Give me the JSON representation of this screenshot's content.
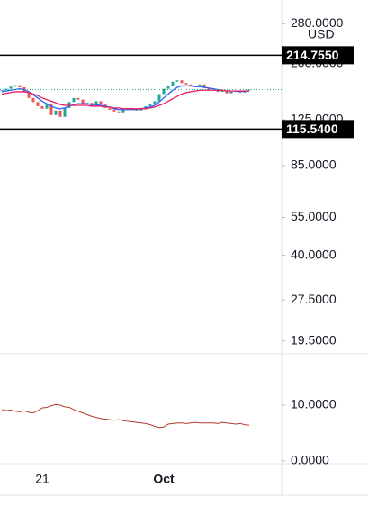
{
  "chart_data": [
    {
      "type": "candle",
      "currency": "USD",
      "log_scale": true,
      "ylim": [
        17.5,
        341.5
      ],
      "yticks": [
        {
          "value": 280,
          "label": "280.0000"
        },
        {
          "value": 200,
          "label": "200.0000"
        },
        {
          "value": 125,
          "label": "125.0000"
        },
        {
          "value": 85,
          "label": "85.0000"
        },
        {
          "value": 55,
          "label": "55.0000"
        },
        {
          "value": 40,
          "label": "40.0000"
        },
        {
          "value": 27.5,
          "label": "27.5000"
        },
        {
          "value": 19.5,
          "label": "19.5000"
        }
      ],
      "levels": [
        {
          "value": 214.755,
          "label": "214.7550"
        },
        {
          "value": 115.54,
          "label": "115.5400"
        }
      ],
      "categories": [
        null,
        null,
        null,
        null,
        null,
        null,
        null,
        null,
        null,
        "21",
        null,
        null,
        null,
        null,
        null,
        null,
        null,
        null,
        null,
        null,
        null,
        null,
        null,
        null,
        null,
        null,
        null,
        null,
        null,
        null,
        null,
        null,
        null,
        null,
        null,
        null,
        "Oct",
        null,
        null,
        null,
        null,
        null,
        null,
        null,
        null,
        null,
        null,
        null,
        null,
        null,
        null,
        null,
        null,
        null,
        null,
        null
      ],
      "up_color": "#26a69a",
      "down_color": "#ef5350",
      "last_price_color": "#26a69a",
      "values": [
        160,
        162,
        165,
        167,
        164,
        158,
        150,
        145,
        140,
        137,
        142,
        130,
        135,
        128,
        138,
        145,
        150,
        148,
        142,
        144,
        140,
        146,
        142,
        138,
        136,
        134,
        133,
        136,
        138,
        137,
        135,
        138,
        140,
        142,
        146,
        155,
        162,
        166,
        172,
        174,
        170,
        168,
        166,
        164,
        168,
        163,
        160,
        161,
        158,
        160,
        156,
        158,
        159,
        157,
        160,
        161
      ],
      "series": [
        {
          "color": "#2962ff",
          "values": [
            158,
            159,
            160,
            161,
            162,
            161,
            158,
            154,
            150,
            146,
            143,
            140,
            138,
            137,
            138,
            140,
            142,
            143,
            143,
            143,
            142,
            142,
            141,
            140,
            139,
            137,
            136,
            136,
            136,
            136,
            136,
            137,
            138,
            139,
            141,
            145,
            150,
            155,
            160,
            164,
            166,
            166,
            166,
            165,
            165,
            164,
            163,
            162,
            161,
            160,
            159,
            159,
            159,
            158,
            159,
            159
          ]
        },
        {
          "color": "#e91e63",
          "values": [
            155,
            156,
            157,
            158,
            158,
            158,
            157,
            155,
            153,
            150,
            148,
            146,
            144,
            142,
            141,
            141,
            141,
            141,
            141,
            141,
            140,
            140,
            140,
            139,
            139,
            138,
            138,
            137,
            137,
            137,
            137,
            137,
            137,
            138,
            139,
            141,
            143,
            146,
            149,
            152,
            155,
            157,
            158,
            159,
            160,
            160,
            160,
            160,
            160,
            160,
            159,
            159,
            159,
            159,
            159,
            159
          ]
        }
      ]
    },
    {
      "type": "line",
      "ylim": [
        -0.5,
        19.2
      ],
      "yticks": [
        {
          "value": 10,
          "label": "10.0000"
        },
        {
          "value": 0,
          "label": "0.0000"
        }
      ],
      "color": "#b2392f",
      "values": [
        9.2,
        9.0,
        9.1,
        8.9,
        8.8,
        9.0,
        8.7,
        8.6,
        9.0,
        9.5,
        9.6,
        9.9,
        10.1,
        10.0,
        9.7,
        9.6,
        9.2,
        8.9,
        8.6,
        8.3,
        8.0,
        7.8,
        7.6,
        7.5,
        7.4,
        7.3,
        7.4,
        7.2,
        7.1,
        7.0,
        6.9,
        6.8,
        6.7,
        6.5,
        6.2,
        6.0,
        6.1,
        6.6,
        6.7,
        6.8,
        6.8,
        6.7,
        6.8,
        6.9,
        6.8,
        6.8,
        6.8,
        6.8,
        6.7,
        6.9,
        6.8,
        6.7,
        6.6,
        6.7,
        6.5,
        6.4
      ]
    }
  ]
}
